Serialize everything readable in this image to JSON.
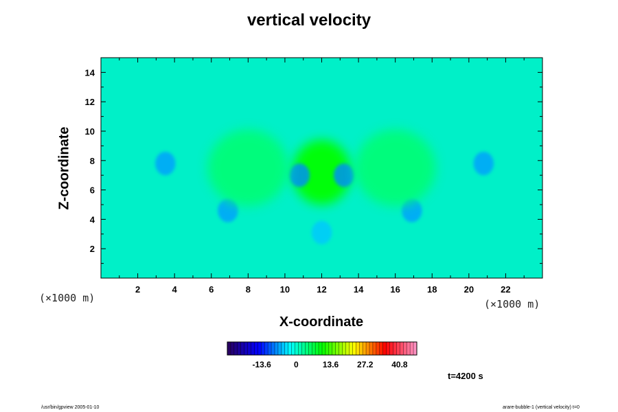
{
  "chart_data": {
    "type": "heatmap",
    "title": "vertical velocity",
    "xlabel": "X-coordinate",
    "ylabel": "Z-coordinate",
    "x_unit_label": "(×1000 m)",
    "z_unit_label": "(×1000 m)",
    "xlim": [
      0,
      24
    ],
    "ylim": [
      0,
      15
    ],
    "x_ticks": [
      2,
      4,
      6,
      8,
      10,
      12,
      14,
      16,
      18,
      20,
      22
    ],
    "y_ticks": [
      2,
      4,
      6,
      8,
      10,
      12,
      14
    ],
    "colorbar": {
      "tick_labels": [
        "-13.6",
        "0",
        "13.6",
        "27.2",
        "40.8"
      ],
      "tick_values": [
        -13.6,
        0,
        13.6,
        27.2,
        40.8
      ],
      "range": [
        -27.2,
        47.6
      ],
      "colors": [
        "#2a005a",
        "#0000ff",
        "#00ffff",
        "#00ff00",
        "#ffff00",
        "#ff0000",
        "#ff99cc"
      ]
    },
    "field_background_color": "#00f0c8",
    "features": [
      {
        "x": 12,
        "z": 7.2,
        "value": 10,
        "kind": "updraft core"
      },
      {
        "x": 10.8,
        "z": 7.0,
        "value": -8,
        "kind": "downdraft flank"
      },
      {
        "x": 13.2,
        "z": 7.0,
        "value": -8,
        "kind": "downdraft flank"
      },
      {
        "x": 3.5,
        "z": 7.8,
        "value": -7,
        "kind": "downdraft"
      },
      {
        "x": 20.8,
        "z": 7.8,
        "value": -7,
        "kind": "downdraft"
      },
      {
        "x": 6.9,
        "z": 4.6,
        "value": -7,
        "kind": "downdraft"
      },
      {
        "x": 16.9,
        "z": 4.6,
        "value": -7,
        "kind": "downdraft"
      },
      {
        "x": 12,
        "z": 3.1,
        "value": -5,
        "kind": "downdraft"
      },
      {
        "x": 8,
        "z": 7.5,
        "value": 5,
        "kind": "updraft"
      },
      {
        "x": 16,
        "z": 7.5,
        "value": 5,
        "kind": "updraft"
      }
    ]
  },
  "time_label": "t=4200 s",
  "footer": {
    "left": "/usr/bin/gpview 2005-01-10",
    "right": "arare-bubble-1 (vertical velocity) t=0"
  }
}
